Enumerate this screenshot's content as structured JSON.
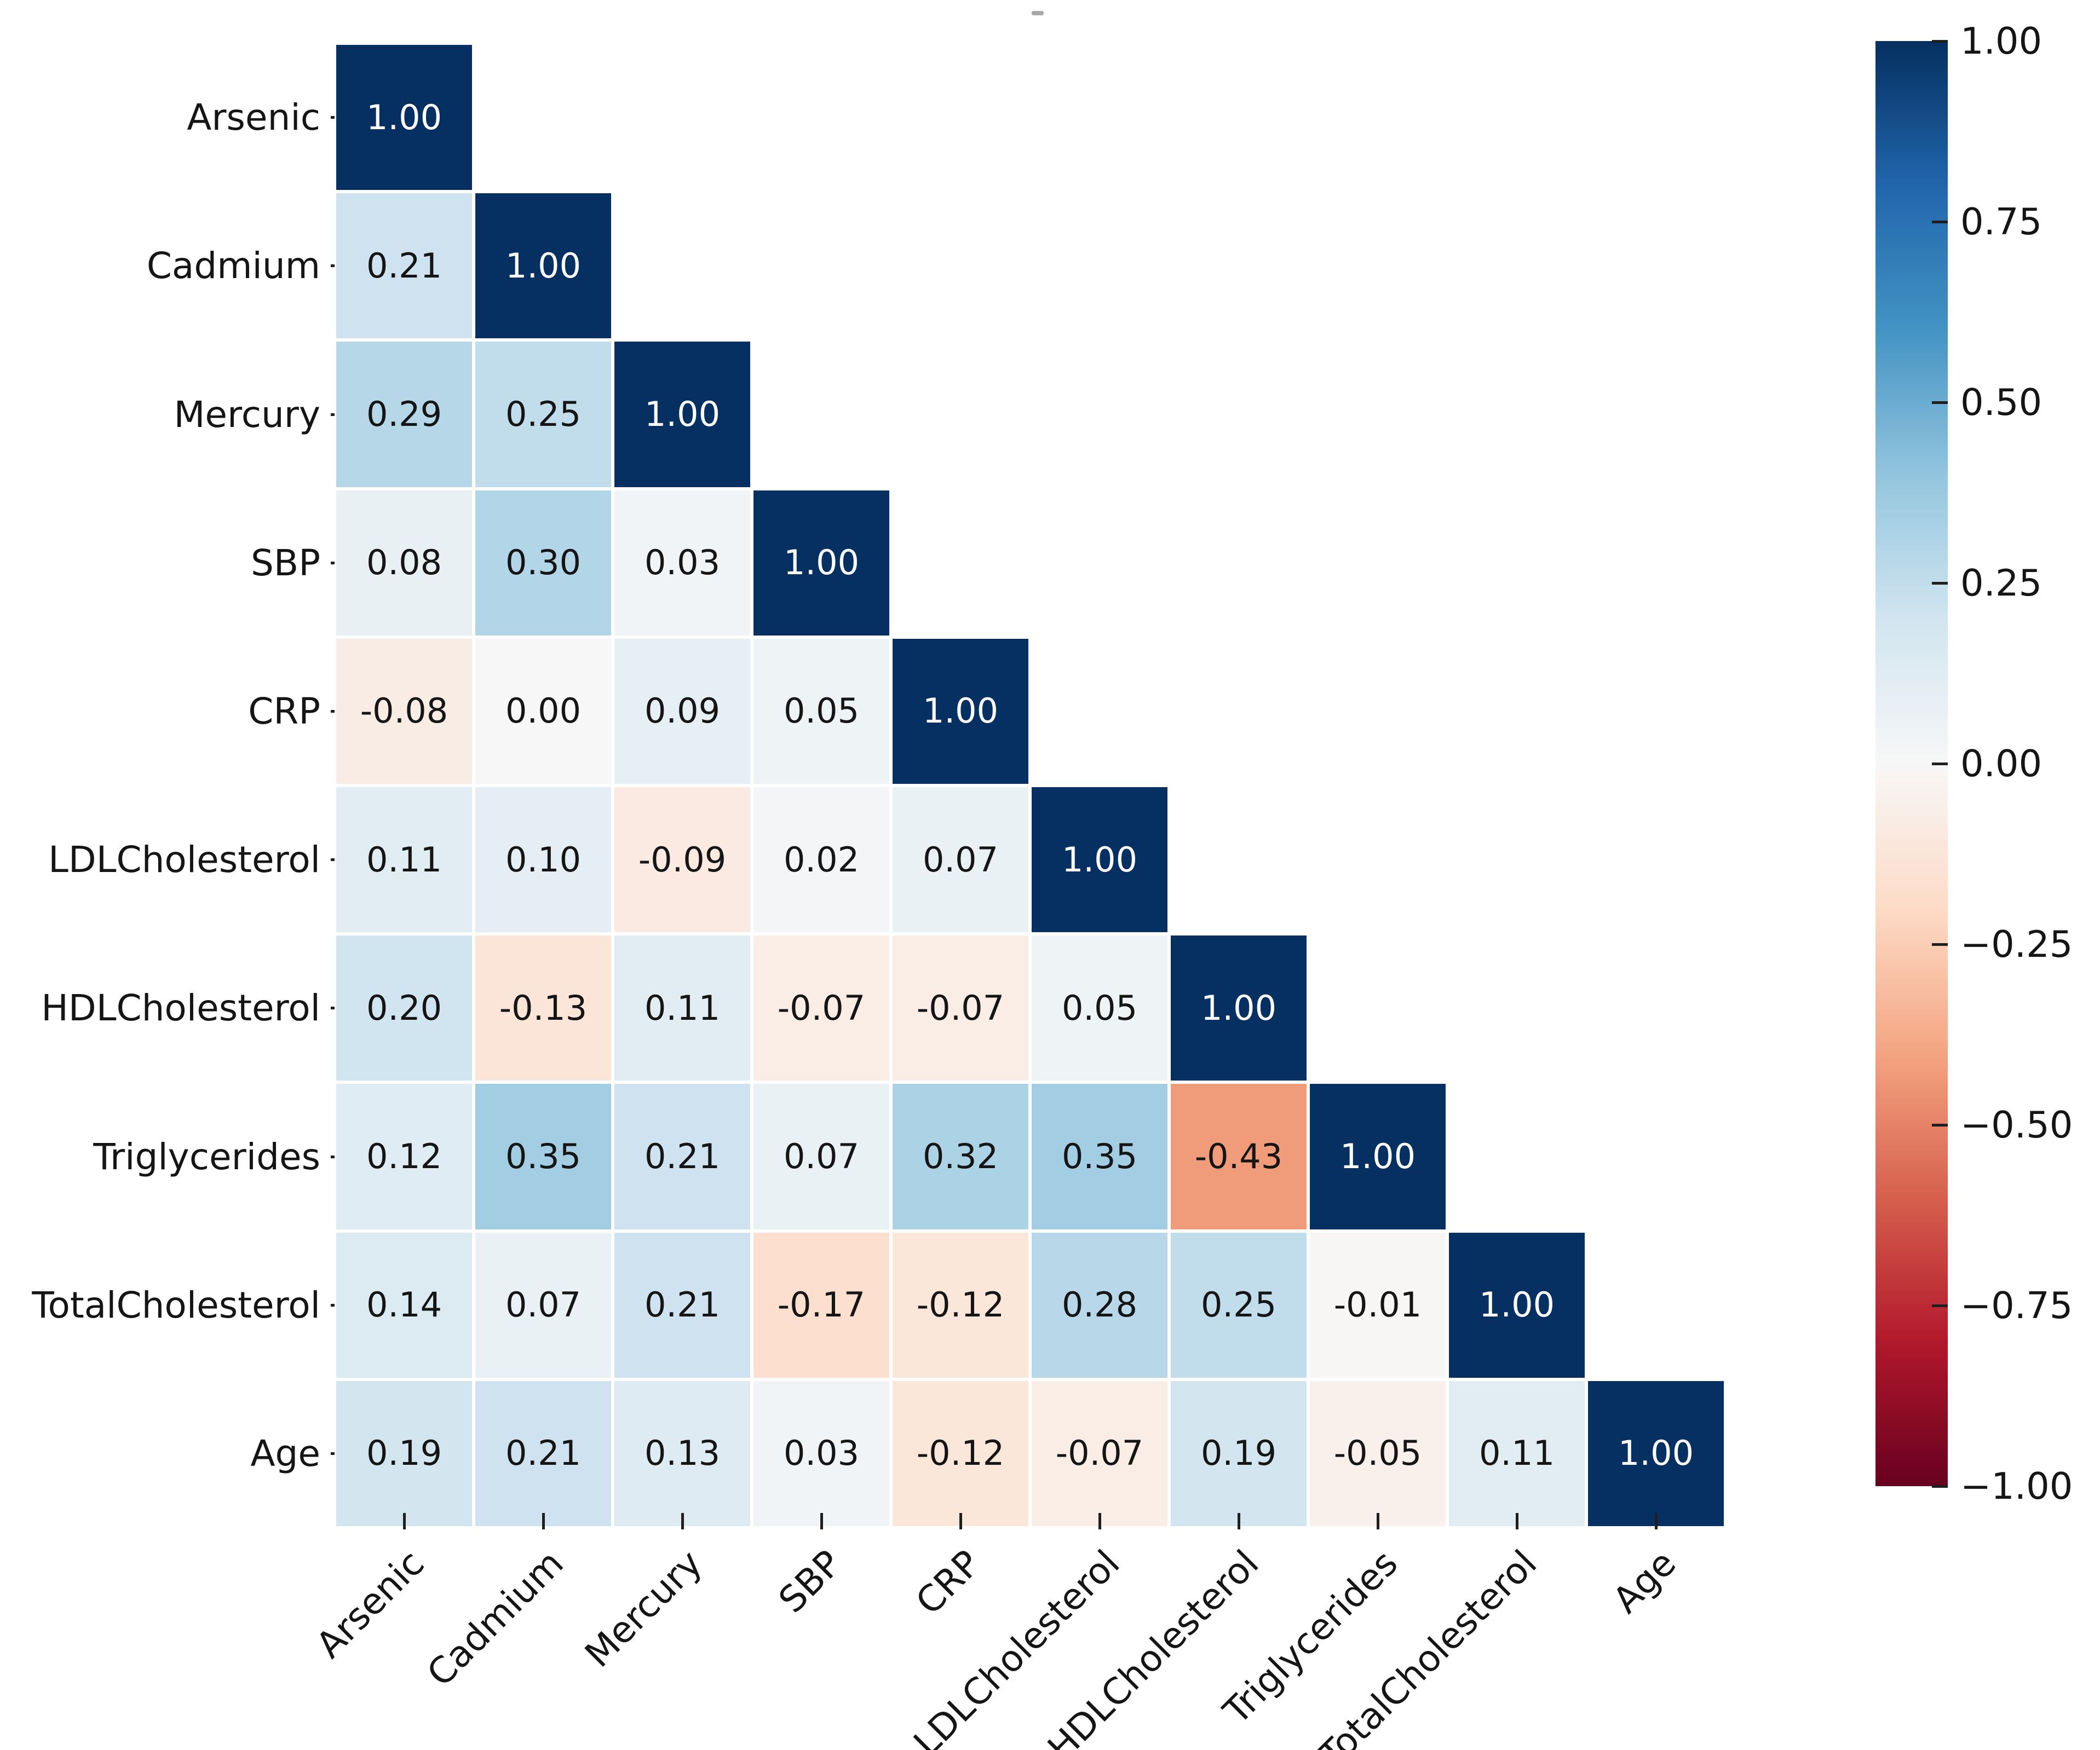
{
  "chart_data": {
    "type": "heatmap",
    "subtype": "correlation-matrix-lower-triangle",
    "title": "",
    "variables": [
      "Arsenic",
      "Cadmium",
      "Mercury",
      "SBP",
      "CRP",
      "LDLCholesterol",
      "HDLCholesterol",
      "Triglycerides",
      "TotalCholesterol",
      "Age"
    ],
    "matrix_lower_triangle": [
      [
        1.0
      ],
      [
        0.21,
        1.0
      ],
      [
        0.29,
        0.25,
        1.0
      ],
      [
        0.08,
        0.3,
        0.03,
        1.0
      ],
      [
        -0.08,
        0.0,
        0.09,
        0.05,
        1.0
      ],
      [
        0.11,
        0.1,
        -0.09,
        0.02,
        0.07,
        1.0
      ],
      [
        0.2,
        -0.13,
        0.11,
        -0.07,
        -0.07,
        0.05,
        1.0
      ],
      [
        0.12,
        0.35,
        0.21,
        0.07,
        0.32,
        0.35,
        -0.43,
        1.0
      ],
      [
        0.14,
        0.07,
        0.21,
        -0.17,
        -0.12,
        0.28,
        0.25,
        -0.01,
        1.0
      ],
      [
        0.19,
        0.21,
        0.13,
        0.03,
        -0.12,
        -0.07,
        0.19,
        -0.05,
        0.11,
        1.0
      ]
    ],
    "value_decimals": 2,
    "vmin": -1.0,
    "vmax": 1.0,
    "grid": false,
    "xlabel": "",
    "ylabel": "",
    "x_tick_rotation_deg": 45,
    "colormap": {
      "name": "RdBu",
      "stops_low_to_high": [
        "#67001f",
        "#b2182b",
        "#d6604d",
        "#f4a582",
        "#fddbc7",
        "#f7f7f7",
        "#d1e5f0",
        "#92c5de",
        "#4393c3",
        "#2166ac",
        "#053061"
      ]
    },
    "colorbar": {
      "position": "right",
      "ticks": [
        {
          "value": 1.0,
          "label": "1.00"
        },
        {
          "value": 0.75,
          "label": "0.75"
        },
        {
          "value": 0.5,
          "label": "0.50"
        },
        {
          "value": 0.25,
          "label": "0.25"
        },
        {
          "value": 0.0,
          "label": "0.00"
        },
        {
          "value": -0.25,
          "label": "−0.25"
        },
        {
          "value": -0.5,
          "label": "−0.50"
        },
        {
          "value": -0.75,
          "label": "−0.75"
        },
        {
          "value": -1.0,
          "label": "−1.00"
        }
      ]
    },
    "annotation_text_colors": {
      "dark_cells": "#ffffff",
      "light_cells": "#151515"
    }
  }
}
